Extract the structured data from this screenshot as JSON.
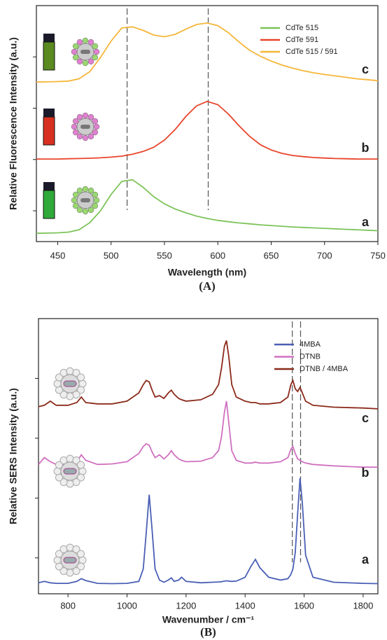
{
  "chart_data": [
    {
      "type": "line",
      "caption": "(A)",
      "x_label": "Wavelength (nm)",
      "y_label": "Relative Fluorescence Intensity (a.u.)",
      "xlim": [
        430,
        750
      ],
      "xticks": [
        450,
        500,
        550,
        600,
        650,
        700,
        750
      ],
      "ylim": [
        0,
        10
      ],
      "vlines": [
        515,
        591
      ],
      "x": [
        430,
        440,
        450,
        460,
        470,
        480,
        490,
        500,
        510,
        520,
        530,
        540,
        550,
        560,
        570,
        580,
        590,
        600,
        610,
        620,
        630,
        640,
        650,
        660,
        670,
        680,
        690,
        700,
        710,
        720,
        730,
        740,
        750
      ],
      "series": [
        {
          "name": "CdTe 515",
          "label": "a",
          "color": "#7dc35a",
          "values": [
            0.35,
            0.36,
            0.37,
            0.4,
            0.5,
            0.8,
            1.3,
            2.0,
            2.55,
            2.62,
            2.3,
            1.9,
            1.6,
            1.38,
            1.22,
            1.08,
            0.98,
            0.9,
            0.84,
            0.79,
            0.75,
            0.71,
            0.68,
            0.65,
            0.62,
            0.6,
            0.58,
            0.56,
            0.54,
            0.52,
            0.5,
            0.48,
            0.46
          ]
        },
        {
          "name": "CdTe 591",
          "label": "b",
          "color": "#e8442a",
          "values": [
            3.5,
            3.5,
            3.5,
            3.51,
            3.52,
            3.53,
            3.55,
            3.58,
            3.62,
            3.7,
            3.82,
            4.0,
            4.3,
            4.75,
            5.3,
            5.75,
            5.94,
            5.8,
            5.4,
            4.9,
            4.45,
            4.1,
            3.88,
            3.74,
            3.65,
            3.6,
            3.56,
            3.54,
            3.52,
            3.51,
            3.5,
            3.5,
            3.5
          ]
        },
        {
          "name": "CdTe 515 / 591",
          "label": "c",
          "color": "#f5b63a",
          "values": [
            6.76,
            6.77,
            6.78,
            6.8,
            6.9,
            7.2,
            7.8,
            8.5,
            9.05,
            9.1,
            8.95,
            8.75,
            8.68,
            8.78,
            9.0,
            9.2,
            9.26,
            9.15,
            8.85,
            8.45,
            8.1,
            7.85,
            7.65,
            7.48,
            7.35,
            7.24,
            7.15,
            7.08,
            7.02,
            6.96,
            6.9,
            6.86,
            6.82
          ]
        }
      ]
    },
    {
      "type": "line",
      "caption": "(B)",
      "x_label": "Wavenumber / cm⁻¹",
      "y_label": "Relative SERS Intensity (a.u.)",
      "xlim": [
        700,
        1850
      ],
      "xticks": [
        800,
        1000,
        1200,
        1400,
        1600,
        1800
      ],
      "ylim": [
        0,
        10
      ],
      "vlines": [
        1560,
        1588
      ],
      "x": [
        700,
        720,
        740,
        760,
        800,
        830,
        845,
        860,
        900,
        950,
        1000,
        1040,
        1055,
        1065,
        1075,
        1085,
        1095,
        1110,
        1125,
        1140,
        1150,
        1160,
        1175,
        1185,
        1200,
        1250,
        1290,
        1310,
        1320,
        1330,
        1337,
        1345,
        1355,
        1370,
        1400,
        1420,
        1435,
        1450,
        1480,
        1520,
        1545,
        1555,
        1562,
        1570,
        1578,
        1586,
        1594,
        1605,
        1630,
        1700,
        1800,
        1850
      ],
      "series": [
        {
          "name": "4MBA",
          "label": "a",
          "color": "#4a5fb5",
          "values": [
            0.4,
            0.45,
            0.4,
            0.38,
            0.38,
            0.45,
            0.55,
            0.48,
            0.38,
            0.37,
            0.38,
            0.45,
            0.9,
            2.2,
            3.6,
            2.3,
            0.9,
            0.5,
            0.42,
            0.5,
            0.58,
            0.45,
            0.5,
            0.6,
            0.45,
            0.4,
            0.42,
            0.43,
            0.44,
            0.46,
            0.47,
            0.46,
            0.45,
            0.46,
            0.6,
            1.0,
            1.25,
            0.95,
            0.6,
            0.5,
            0.55,
            0.7,
            0.9,
            1.5,
            2.9,
            4.2,
            3.3,
            1.4,
            0.6,
            0.42,
            0.38,
            0.37
          ]
        },
        {
          "name": "DTNB",
          "label": "b",
          "color": "#d070c0",
          "values": [
            4.7,
            4.95,
            4.8,
            4.7,
            4.68,
            4.8,
            5.05,
            4.85,
            4.7,
            4.72,
            4.8,
            5.1,
            5.35,
            5.45,
            5.4,
            5.15,
            4.95,
            5.05,
            4.9,
            5.05,
            5.2,
            5.05,
            4.9,
            4.85,
            4.8,
            4.82,
            4.95,
            5.2,
            5.7,
            6.6,
            7.0,
            6.2,
            5.2,
            4.85,
            4.75,
            4.75,
            4.78,
            4.75,
            4.75,
            4.8,
            4.95,
            5.25,
            5.35,
            5.1,
            4.9,
            4.85,
            4.8,
            4.75,
            4.7,
            4.65,
            4.6,
            4.6
          ]
        },
        {
          "name": "DTNB / 4MBA",
          "label": "c",
          "color": "#8b2a1a",
          "values": [
            6.8,
            6.85,
            7.0,
            6.85,
            6.85,
            6.95,
            7.15,
            6.95,
            6.9,
            6.9,
            7.0,
            7.3,
            7.6,
            7.75,
            7.7,
            7.4,
            7.15,
            7.2,
            7.1,
            7.3,
            7.4,
            7.25,
            7.1,
            7.05,
            7.0,
            7.05,
            7.25,
            7.6,
            8.2,
            9.0,
            9.2,
            8.6,
            7.6,
            7.15,
            7.0,
            6.95,
            6.95,
            6.9,
            6.9,
            6.95,
            7.15,
            7.6,
            7.75,
            7.45,
            7.35,
            7.5,
            7.3,
            7.0,
            6.85,
            6.78,
            6.75,
            6.72
          ]
        }
      ]
    }
  ]
}
